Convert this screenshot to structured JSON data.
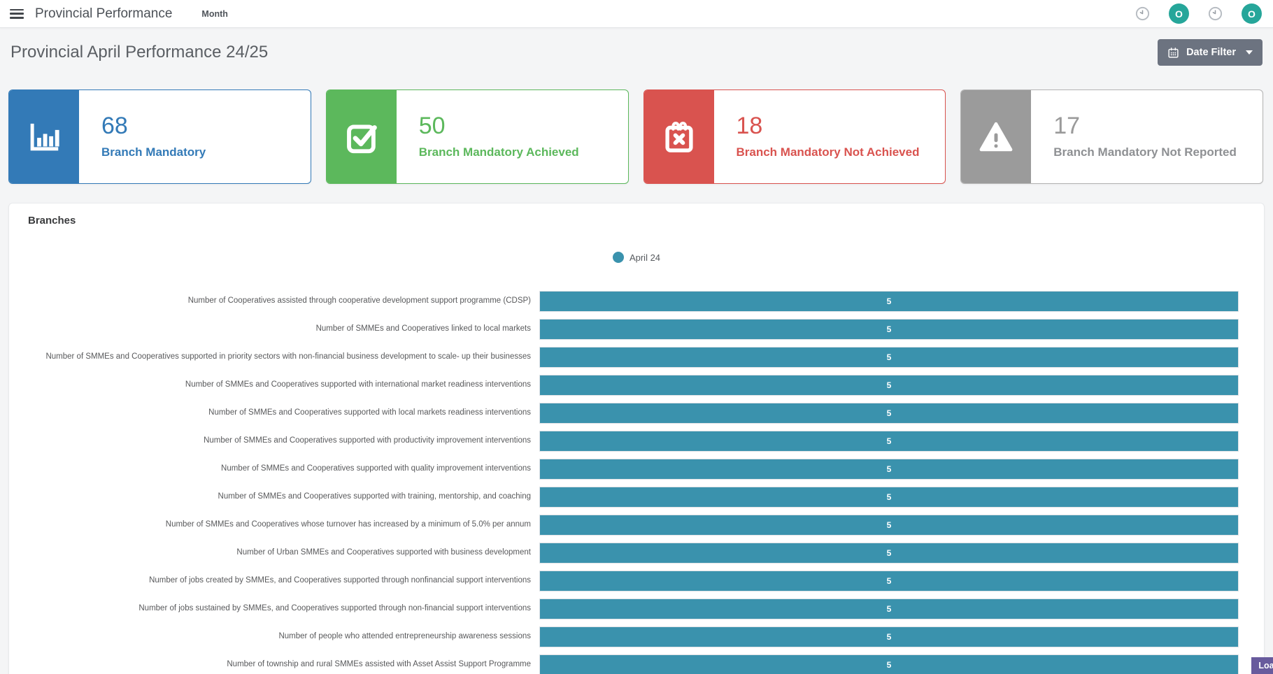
{
  "topbar": {
    "title": "Provincial Performance",
    "menu_label": "Month",
    "avatar_letter_1": "O",
    "avatar_letter_2": "O"
  },
  "page": {
    "title": "Provincial April Performance 24/25",
    "date_filter_label": "Date Filter"
  },
  "stats": [
    {
      "value": "68",
      "label": "Branch Mandatory",
      "color": "#337ab7",
      "icon": "bar-chart-icon"
    },
    {
      "value": "50",
      "label": "Branch Mandatory Achieved",
      "color": "#5cb85c",
      "icon": "check-square-icon"
    },
    {
      "value": "18",
      "label": "Branch Mandatory Not Achieved",
      "color": "#d9534f",
      "icon": "calendar-x-icon"
    },
    {
      "value": "17",
      "label": "Branch Mandatory Not Reported",
      "color": "#9b9b9b",
      "icon": "warning-triangle-icon"
    }
  ],
  "panel": {
    "title": "Branches",
    "legend": {
      "label": "April 24",
      "color": "#3a92ad"
    }
  },
  "chart_data": {
    "type": "bar",
    "orientation": "horizontal",
    "title": "Branches",
    "series_name": "April 24",
    "bar_color": "#3a92ad",
    "xlim": [
      0,
      5
    ],
    "grid": false,
    "legend_position": "top-center",
    "categories": [
      "Number of Cooperatives assisted through cooperative development support programme (CDSP)",
      "Number of SMMEs and Cooperatives linked to local markets",
      "Number of SMMEs and Cooperatives supported in priority sectors with non-financial business development to scale- up their businesses",
      "Number of SMMEs and Cooperatives supported with international market readiness interventions",
      "Number of SMMEs and Cooperatives supported with local markets readiness interventions",
      "Number of SMMEs and Cooperatives supported with productivity improvement interventions",
      "Number of SMMEs and Cooperatives supported with quality improvement interventions",
      "Number of SMMEs and Cooperatives supported with training, mentorship, and coaching",
      "Number of SMMEs and Cooperatives whose turnover has increased by a minimum of 5.0% per annum",
      "Number of Urban SMMEs and Cooperatives supported with business development",
      "Number of jobs created by SMMEs, and Cooperatives supported through nonfinancial support interventions",
      "Number of jobs sustained by SMMEs, and Cooperatives supported through non-financial support interventions",
      "Number of people who attended entrepreneurship awareness sessions",
      "Number of township and rural SMMEs assisted with Asset Assist Support Programme"
    ],
    "values": [
      5,
      5,
      5,
      5,
      5,
      5,
      5,
      5,
      5,
      5,
      5,
      5,
      5,
      5
    ]
  },
  "loading_toast": {
    "label": "Loading",
    "color": "#685b9d"
  }
}
